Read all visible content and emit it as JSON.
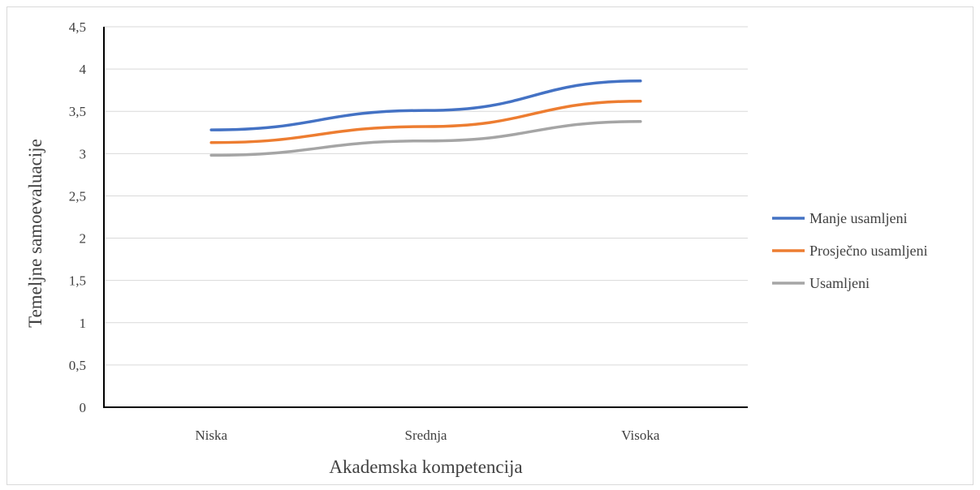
{
  "chart_data": {
    "type": "line",
    "title": "",
    "xlabel": "Akademska kompetencija",
    "ylabel": "Temeljne samoevaluacije",
    "categories": [
      "Niska",
      "Srednja",
      "Visoka"
    ],
    "ylim": [
      0,
      4.5
    ],
    "yticks": [
      "0",
      "0,5",
      "1",
      "1,5",
      "2",
      "2,5",
      "3",
      "3,5",
      "4",
      "4,5"
    ],
    "ytick_values": [
      0,
      0.5,
      1,
      1.5,
      2,
      2.5,
      3,
      3.5,
      4,
      4.5
    ],
    "grid": true,
    "legend_position": "right",
    "series": [
      {
        "name": "Manje usamljeni",
        "values": [
          3.28,
          3.51,
          3.86
        ],
        "color": "#4472c4"
      },
      {
        "name": "Prosječno usamljeni",
        "values": [
          3.13,
          3.32,
          3.62
        ],
        "color": "#ed7d31"
      },
      {
        "name": "Usamljeni",
        "values": [
          2.98,
          3.15,
          3.38
        ],
        "color": "#a5a5a5"
      }
    ]
  }
}
